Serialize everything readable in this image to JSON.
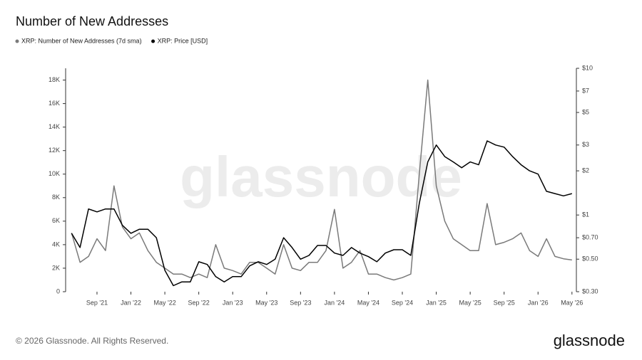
{
  "chart_data": {
    "type": "line",
    "title": "Number of New Addresses",
    "watermark": "glassnode",
    "footer": "© 2026 Glassnode. All Rights Reserved.",
    "brand": "glassnode",
    "x": [
      "2021-06",
      "2021-07",
      "2021-08",
      "2021-09",
      "2021-10",
      "2021-11",
      "2021-12",
      "2022-01",
      "2022-02",
      "2022-03",
      "2022-04",
      "2022-05",
      "2022-06",
      "2022-07",
      "2022-08",
      "2022-09",
      "2022-10",
      "2022-11",
      "2022-12",
      "2023-01",
      "2023-02",
      "2023-03",
      "2023-04",
      "2023-05",
      "2023-06",
      "2023-07",
      "2023-08",
      "2023-09",
      "2023-10",
      "2023-11",
      "2023-12",
      "2024-01",
      "2024-02",
      "2024-03",
      "2024-04",
      "2024-05",
      "2024-06",
      "2024-07",
      "2024-08",
      "2024-09",
      "2024-10",
      "2024-11",
      "2024-12",
      "2025-01",
      "2025-02",
      "2025-03",
      "2025-04",
      "2025-05",
      "2025-06",
      "2025-07",
      "2025-08",
      "2025-09",
      "2025-10",
      "2025-11",
      "2025-12",
      "2026-01",
      "2026-02",
      "2026-03",
      "2026-04",
      "2026-05"
    ],
    "series": [
      {
        "name": "XRP: Number of New Addresses (7d sma)",
        "color": "#7a7a7a",
        "values": [
          5000,
          2500,
          3000,
          4500,
          3500,
          9000,
          5500,
          4500,
          5000,
          3500,
          2500,
          2000,
          1500,
          1500,
          1200,
          1500,
          1200,
          4000,
          2000,
          1800,
          1500,
          2500,
          2500,
          2000,
          1500,
          4000,
          2000,
          1800,
          2500,
          2500,
          3500,
          7000,
          2000,
          2500,
          3500,
          1500,
          1500,
          1200,
          1000,
          1200,
          1500,
          10000,
          18000,
          9000,
          6000,
          4500,
          4000,
          3500,
          3500,
          7500,
          4000,
          4200,
          4500,
          5000,
          3500,
          3000,
          4500,
          3000,
          2800,
          2700
        ]
      },
      {
        "name": "XRP: Price [USD]",
        "color": "#000000",
        "axis": "y2",
        "values": [
          0.75,
          0.6,
          1.1,
          1.05,
          1.1,
          1.1,
          0.85,
          0.75,
          0.8,
          0.8,
          0.7,
          0.42,
          0.33,
          0.35,
          0.35,
          0.48,
          0.46,
          0.38,
          0.35,
          0.38,
          0.38,
          0.45,
          0.48,
          0.46,
          0.5,
          0.7,
          0.6,
          0.5,
          0.53,
          0.62,
          0.62,
          0.55,
          0.53,
          0.6,
          0.55,
          0.52,
          0.48,
          0.55,
          0.58,
          0.58,
          0.53,
          1.2,
          2.3,
          3.0,
          2.5,
          2.3,
          2.1,
          2.3,
          2.2,
          3.2,
          3.0,
          2.9,
          2.5,
          2.2,
          2.0,
          1.9,
          1.45,
          1.4,
          1.35,
          1.4
        ]
      }
    ],
    "xticks": [
      {
        "value": "2021-09",
        "label": "Sep '21"
      },
      {
        "value": "2022-01",
        "label": "Jan '22"
      },
      {
        "value": "2022-05",
        "label": "May '22"
      },
      {
        "value": "2022-09",
        "label": "Sep '22"
      },
      {
        "value": "2023-01",
        "label": "Jan '23"
      },
      {
        "value": "2023-05",
        "label": "May '23"
      },
      {
        "value": "2023-09",
        "label": "Sep '23"
      },
      {
        "value": "2024-01",
        "label": "Jan '24"
      },
      {
        "value": "2024-05",
        "label": "May '24"
      },
      {
        "value": "2024-09",
        "label": "Sep '24"
      },
      {
        "value": "2025-01",
        "label": "Jan '25"
      },
      {
        "value": "2025-05",
        "label": "May '25"
      },
      {
        "value": "2025-09",
        "label": "Sep '25"
      },
      {
        "value": "2026-01",
        "label": "Jan '26"
      },
      {
        "value": "2026-05",
        "label": "May '26"
      }
    ],
    "ylim": [
      0,
      19000
    ],
    "yticks": [
      0,
      {
        "value": 2000,
        "label": "2K"
      },
      {
        "value": 4000,
        "label": "4K"
      },
      {
        "value": 6000,
        "label": "6K"
      },
      {
        "value": 8000,
        "label": "8K"
      },
      {
        "value": 10000,
        "label": "10K"
      },
      {
        "value": 12000,
        "label": "12K"
      },
      {
        "value": 14000,
        "label": "14K"
      },
      {
        "value": 16000,
        "label": "16K"
      },
      {
        "value": 18000,
        "label": "18K"
      }
    ],
    "y2lim": [
      0.3,
      10
    ],
    "y2scale": "log",
    "y2ticks": [
      {
        "value": 0.3,
        "label": "$0.30"
      },
      {
        "value": 0.5,
        "label": "$0.50"
      },
      {
        "value": 0.7,
        "label": "$0.70"
      },
      {
        "value": 1,
        "label": "$1"
      },
      {
        "value": 2,
        "label": "$2"
      },
      {
        "value": 3,
        "label": "$3"
      },
      {
        "value": 5,
        "label": "$5"
      },
      {
        "value": 7,
        "label": "$7"
      },
      {
        "value": 10,
        "label": "$10"
      }
    ]
  }
}
